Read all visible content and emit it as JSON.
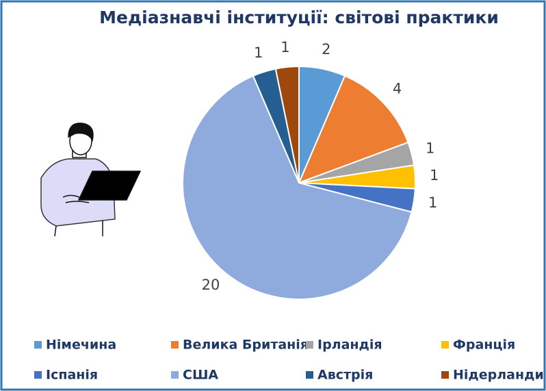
{
  "chart_data": {
    "type": "pie",
    "title": "Медіазнавчі інституції: світові практики",
    "categories": [
      "Німечина",
      "Велика Британія",
      "Ірландія",
      "Франція",
      "Іспанія",
      "США",
      "Австрія",
      "Нідерланди"
    ],
    "values": [
      2,
      4,
      1,
      1,
      1,
      20,
      1,
      1
    ],
    "colors": [
      "#5b9bd5",
      "#ed7d31",
      "#a5a5a5",
      "#ffc000",
      "#4472c4",
      "#8faadc",
      "#255e91",
      "#9e480e"
    ]
  }
}
